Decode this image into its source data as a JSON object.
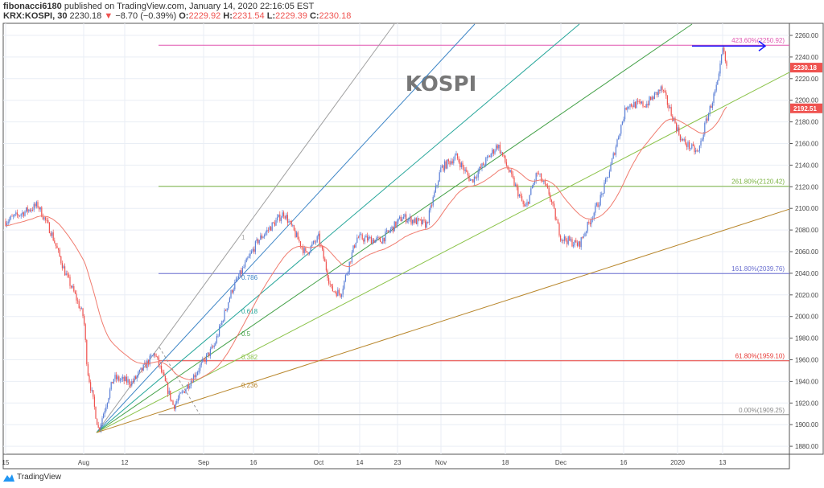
{
  "header": {
    "author": "fibonacci6180",
    "published_text": "published on TradingView.com, January 14, 2020 22:16:05 EST",
    "symbol": "KRX:KOSPI, 30",
    "last": "2230.18",
    "change": "−8.70 (−0.39%)",
    "change_direction_icon": "triangle-down-icon",
    "open_label": "O:",
    "open": "2229.92",
    "high_label": "H:",
    "high": "2231.54",
    "low_label": "L:",
    "low": "2229.39",
    "close_label": "C:",
    "close": "2230.18"
  },
  "footer": {
    "brand": "TradingView"
  },
  "colors": {
    "up_candle": "#5b7fd6",
    "down_candle": "#ef5350",
    "moving_average": "#f07b6e",
    "grid": "#e9eef5",
    "badge": "#ef5350"
  },
  "chart_data": {
    "type": "candlestick",
    "title": "KOSPI",
    "interval": "30",
    "ylim": [
      1870,
      2270
    ],
    "y_ticks": [
      "2260.00",
      "2240.00",
      "2220.00",
      "2200.00",
      "2180.00",
      "2160.00",
      "2140.00",
      "2120.00",
      "2100.00",
      "2080.00",
      "2060.00",
      "2040.00",
      "2020.00",
      "2000.00",
      "1980.00",
      "1960.00",
      "1940.00",
      "1920.00",
      "1900.00",
      "1880.00"
    ],
    "x_ticks": [
      "15",
      "Aug",
      "12",
      "Sep",
      "16",
      "Oct",
      "14",
      "23",
      "Nov",
      "18",
      "Dec",
      "16",
      "2020",
      "13"
    ],
    "price_path": [
      [
        "2019-07-15",
        2088
      ],
      [
        "2019-07-22",
        2103
      ],
      [
        "2019-07-25",
        2077
      ],
      [
        "2019-07-28",
        2040
      ],
      [
        "2019-07-30",
        2021
      ],
      [
        "2019-08-01",
        1999
      ],
      [
        "2019-08-02",
        1951
      ],
      [
        "2019-08-05",
        1895
      ],
      [
        "2019-08-09",
        1943
      ],
      [
        "2019-08-14",
        1939
      ],
      [
        "2019-08-20",
        1966
      ],
      [
        "2019-08-25",
        1917
      ],
      [
        "2019-08-30",
        1943
      ],
      [
        "2019-09-05",
        1973
      ],
      [
        "2019-09-10",
        2025
      ],
      [
        "2019-09-17",
        2070
      ],
      [
        "2019-09-23",
        2096
      ],
      [
        "2019-09-28",
        2058
      ],
      [
        "2019-10-01",
        2073
      ],
      [
        "2019-10-05",
        2025
      ],
      [
        "2019-10-08",
        2021
      ],
      [
        "2019-10-13",
        2073
      ],
      [
        "2019-10-19",
        2070
      ],
      [
        "2019-10-24",
        2092
      ],
      [
        "2019-10-29",
        2085
      ],
      [
        "2019-11-01",
        2137
      ],
      [
        "2019-11-05",
        2148
      ],
      [
        "2019-11-09",
        2125
      ],
      [
        "2019-11-16",
        2159
      ],
      [
        "2019-11-20",
        2125
      ],
      [
        "2019-11-23",
        2099
      ],
      [
        "2019-11-26",
        2133
      ],
      [
        "2019-11-29",
        2114
      ],
      [
        "2019-12-02",
        2073
      ],
      [
        "2019-12-06",
        2066
      ],
      [
        "2019-12-11",
        2111
      ],
      [
        "2019-12-13",
        2137
      ],
      [
        "2019-12-15",
        2170
      ],
      [
        "2019-12-17",
        2196
      ],
      [
        "2019-12-23",
        2196
      ],
      [
        "2019-12-28",
        2211
      ],
      [
        "2020-01-03",
        2163
      ],
      [
        "2020-01-07",
        2151
      ],
      [
        "2020-01-09",
        2181
      ],
      [
        "2020-01-12",
        2218
      ],
      [
        "2020-01-13",
        2248
      ],
      [
        "2020-01-14",
        2230
      ]
    ],
    "price_badges": [
      {
        "value": "2230.18",
        "color": "#ef5350"
      },
      {
        "value": "2192.51",
        "color": "#ef5350"
      }
    ],
    "fib_retracement": [
      {
        "label": "423.60%(2250.92)",
        "price": 2250.92,
        "color": "#e056b0"
      },
      {
        "label": "261.80%(2120.42)",
        "price": 2120.42,
        "color": "#7cb342"
      },
      {
        "label": "161.80%(2039.76)",
        "price": 2039.76,
        "color": "#6a6fd0"
      },
      {
        "label": "61.80%(1959.10)",
        "price": 1959.1,
        "color": "#e53935"
      },
      {
        "label": "0.00%(1909.25)",
        "price": 1909.25,
        "color": "#888888"
      }
    ],
    "fib_fan": [
      {
        "label": "1",
        "color": "#a0a0a0"
      },
      {
        "label": "0.786",
        "color": "#3d85c6"
      },
      {
        "label": "0.618",
        "color": "#26a69a"
      },
      {
        "label": "0.5",
        "color": "#43a047"
      },
      {
        "label": "0.382",
        "color": "#8bc34a"
      },
      {
        "label": "0.236",
        "color": "#b8862b"
      }
    ],
    "annotation_arrow": {
      "color": "#1a1aff"
    }
  }
}
